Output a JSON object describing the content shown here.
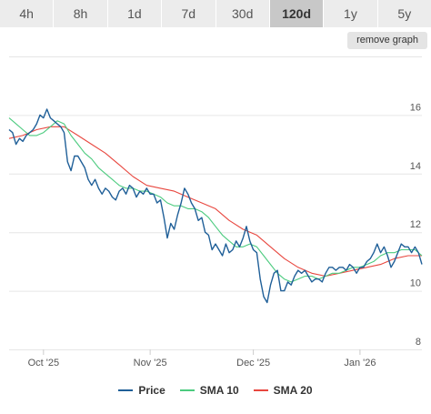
{
  "ranges": [
    {
      "label": "4h",
      "active": false
    },
    {
      "label": "8h",
      "active": false
    },
    {
      "label": "1d",
      "active": false
    },
    {
      "label": "7d",
      "active": false
    },
    {
      "label": "30d",
      "active": false
    },
    {
      "label": "120d",
      "active": true
    },
    {
      "label": "1y",
      "active": false
    },
    {
      "label": "5y",
      "active": false
    }
  ],
  "remove_graph_label": "remove graph",
  "colors": {
    "price": "#1f5f98",
    "sma10": "#4ccb7f",
    "sma20": "#e8473f",
    "grid": "#e6e6e6"
  },
  "chart_data": {
    "type": "line",
    "ylim": [
      8,
      18
    ],
    "yticks": [
      8,
      10,
      12,
      14,
      16
    ],
    "grid": true,
    "legend_placement": "bottom-center",
    "xlim": [
      0,
      120
    ],
    "xticks": [
      {
        "x": 10,
        "label": "Oct '25"
      },
      {
        "x": 41,
        "label": "Nov '25"
      },
      {
        "x": 71,
        "label": "Dec '25"
      },
      {
        "x": 102,
        "label": "Jan '26"
      }
    ],
    "series": [
      {
        "name": "Price",
        "key": "price",
        "points": [
          [
            0,
            15.5
          ],
          [
            1,
            15.4
          ],
          [
            2,
            15.0
          ],
          [
            3,
            15.2
          ],
          [
            4,
            15.1
          ],
          [
            5,
            15.3
          ],
          [
            6,
            15.4
          ],
          [
            7,
            15.5
          ],
          [
            8,
            15.7
          ],
          [
            9,
            16.0
          ],
          [
            10,
            15.9
          ],
          [
            11,
            16.2
          ],
          [
            12,
            15.9
          ],
          [
            13,
            15.8
          ],
          [
            14,
            15.7
          ],
          [
            15,
            15.6
          ],
          [
            16,
            15.4
          ],
          [
            17,
            14.4
          ],
          [
            18,
            14.1
          ],
          [
            19,
            14.6
          ],
          [
            20,
            14.6
          ],
          [
            21,
            14.4
          ],
          [
            22,
            14.2
          ],
          [
            23,
            13.8
          ],
          [
            24,
            13.6
          ],
          [
            25,
            13.8
          ],
          [
            26,
            13.5
          ],
          [
            27,
            13.3
          ],
          [
            28,
            13.5
          ],
          [
            29,
            13.4
          ],
          [
            30,
            13.2
          ],
          [
            31,
            13.1
          ],
          [
            32,
            13.4
          ],
          [
            33,
            13.5
          ],
          [
            34,
            13.3
          ],
          [
            35,
            13.6
          ],
          [
            36,
            13.5
          ],
          [
            37,
            13.2
          ],
          [
            38,
            13.4
          ],
          [
            39,
            13.3
          ],
          [
            40,
            13.5
          ],
          [
            41,
            13.3
          ],
          [
            42,
            13.3
          ],
          [
            43,
            13.0
          ],
          [
            44,
            13.1
          ],
          [
            45,
            12.5
          ],
          [
            46,
            11.8
          ],
          [
            47,
            12.3
          ],
          [
            48,
            12.1
          ],
          [
            49,
            12.6
          ],
          [
            50,
            13.0
          ],
          [
            51,
            13.5
          ],
          [
            52,
            13.3
          ],
          [
            53,
            13.0
          ],
          [
            54,
            12.8
          ],
          [
            55,
            12.4
          ],
          [
            56,
            12.5
          ],
          [
            57,
            12.0
          ],
          [
            58,
            11.9
          ],
          [
            59,
            11.4
          ],
          [
            60,
            11.6
          ],
          [
            61,
            11.4
          ],
          [
            62,
            11.2
          ],
          [
            63,
            11.6
          ],
          [
            64,
            11.3
          ],
          [
            65,
            11.4
          ],
          [
            66,
            11.7
          ],
          [
            67,
            11.5
          ],
          [
            68,
            11.8
          ],
          [
            69,
            12.2
          ],
          [
            70,
            11.7
          ],
          [
            71,
            11.4
          ],
          [
            72,
            11.3
          ],
          [
            73,
            10.4
          ],
          [
            74,
            9.8
          ],
          [
            75,
            9.6
          ],
          [
            76,
            10.2
          ],
          [
            77,
            10.6
          ],
          [
            78,
            10.7
          ],
          [
            79,
            10.0
          ],
          [
            80,
            10.0
          ],
          [
            81,
            10.3
          ],
          [
            82,
            10.2
          ],
          [
            83,
            10.5
          ],
          [
            84,
            10.7
          ],
          [
            85,
            10.6
          ],
          [
            86,
            10.7
          ],
          [
            87,
            10.5
          ],
          [
            88,
            10.3
          ],
          [
            89,
            10.4
          ],
          [
            90,
            10.4
          ],
          [
            91,
            10.3
          ],
          [
            92,
            10.6
          ],
          [
            93,
            10.8
          ],
          [
            94,
            10.8
          ],
          [
            95,
            10.7
          ],
          [
            96,
            10.8
          ],
          [
            97,
            10.8
          ],
          [
            98,
            10.7
          ],
          [
            99,
            10.9
          ],
          [
            100,
            10.8
          ],
          [
            101,
            10.6
          ],
          [
            102,
            10.8
          ],
          [
            103,
            10.8
          ],
          [
            104,
            11.0
          ],
          [
            105,
            11.1
          ],
          [
            106,
            11.3
          ],
          [
            107,
            11.6
          ],
          [
            108,
            11.3
          ],
          [
            109,
            11.5
          ],
          [
            110,
            11.2
          ],
          [
            111,
            10.8
          ],
          [
            112,
            11.0
          ],
          [
            113,
            11.3
          ],
          [
            114,
            11.6
          ],
          [
            115,
            11.5
          ],
          [
            116,
            11.5
          ],
          [
            117,
            11.3
          ],
          [
            118,
            11.5
          ],
          [
            119,
            11.3
          ],
          [
            120,
            10.9
          ]
        ]
      },
      {
        "name": "SMA 10",
        "key": "sma10",
        "points": [
          [
            0,
            15.9
          ],
          [
            2,
            15.7
          ],
          [
            4,
            15.5
          ],
          [
            6,
            15.3
          ],
          [
            8,
            15.3
          ],
          [
            10,
            15.4
          ],
          [
            12,
            15.6
          ],
          [
            14,
            15.8
          ],
          [
            16,
            15.7
          ],
          [
            18,
            15.3
          ],
          [
            20,
            15.0
          ],
          [
            22,
            14.7
          ],
          [
            24,
            14.5
          ],
          [
            26,
            14.2
          ],
          [
            28,
            14.0
          ],
          [
            30,
            13.8
          ],
          [
            32,
            13.6
          ],
          [
            34,
            13.5
          ],
          [
            36,
            13.5
          ],
          [
            38,
            13.4
          ],
          [
            40,
            13.4
          ],
          [
            42,
            13.3
          ],
          [
            44,
            13.2
          ],
          [
            46,
            13.0
          ],
          [
            48,
            12.9
          ],
          [
            50,
            12.9
          ],
          [
            52,
            12.8
          ],
          [
            54,
            12.8
          ],
          [
            56,
            12.7
          ],
          [
            58,
            12.5
          ],
          [
            60,
            12.2
          ],
          [
            62,
            11.9
          ],
          [
            64,
            11.7
          ],
          [
            66,
            11.5
          ],
          [
            68,
            11.5
          ],
          [
            70,
            11.6
          ],
          [
            72,
            11.5
          ],
          [
            74,
            11.2
          ],
          [
            76,
            10.9
          ],
          [
            78,
            10.6
          ],
          [
            80,
            10.4
          ],
          [
            82,
            10.3
          ],
          [
            84,
            10.4
          ],
          [
            86,
            10.5
          ],
          [
            88,
            10.5
          ],
          [
            90,
            10.4
          ],
          [
            92,
            10.5
          ],
          [
            94,
            10.6
          ],
          [
            96,
            10.6
          ],
          [
            98,
            10.7
          ],
          [
            100,
            10.8
          ],
          [
            102,
            10.8
          ],
          [
            104,
            10.9
          ],
          [
            106,
            11.0
          ],
          [
            108,
            11.2
          ],
          [
            110,
            11.3
          ],
          [
            112,
            11.3
          ],
          [
            114,
            11.4
          ],
          [
            116,
            11.4
          ],
          [
            118,
            11.4
          ],
          [
            120,
            11.2
          ]
        ]
      },
      {
        "name": "SMA 20",
        "key": "sma20",
        "points": [
          [
            0,
            15.2
          ],
          [
            4,
            15.3
          ],
          [
            8,
            15.5
          ],
          [
            12,
            15.6
          ],
          [
            16,
            15.6
          ],
          [
            20,
            15.3
          ],
          [
            24,
            15.0
          ],
          [
            28,
            14.7
          ],
          [
            32,
            14.3
          ],
          [
            36,
            13.9
          ],
          [
            40,
            13.6
          ],
          [
            44,
            13.5
          ],
          [
            48,
            13.4
          ],
          [
            52,
            13.2
          ],
          [
            56,
            13.0
          ],
          [
            60,
            12.8
          ],
          [
            64,
            12.4
          ],
          [
            68,
            12.1
          ],
          [
            72,
            11.9
          ],
          [
            76,
            11.5
          ],
          [
            80,
            11.1
          ],
          [
            84,
            10.8
          ],
          [
            88,
            10.6
          ],
          [
            92,
            10.5
          ],
          [
            96,
            10.6
          ],
          [
            100,
            10.7
          ],
          [
            104,
            10.8
          ],
          [
            108,
            10.9
          ],
          [
            112,
            11.1
          ],
          [
            116,
            11.2
          ],
          [
            120,
            11.2
          ]
        ]
      }
    ]
  }
}
